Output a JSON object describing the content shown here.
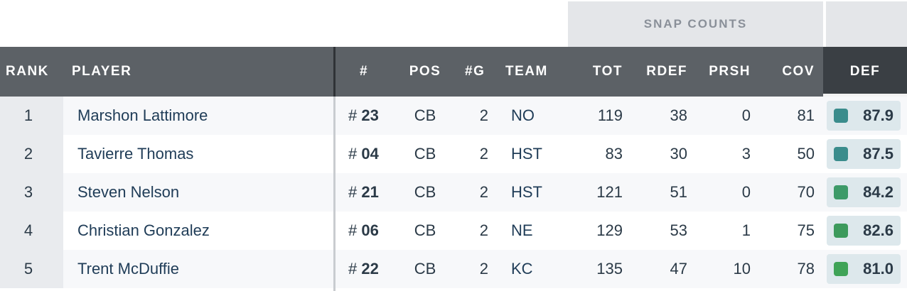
{
  "group_header": {
    "snap_counts": "SNAP COUNTS"
  },
  "columns": {
    "rank": "RANK",
    "player": "PLAYER",
    "number": "#",
    "pos": "POS",
    "games": "#G",
    "team": "TEAM",
    "tot": "TOT",
    "rdef": "RDEF",
    "prsh": "PRSH",
    "cov": "COV",
    "def": "DEF"
  },
  "rows": [
    {
      "rank": "1",
      "player": "Marshon Lattimore",
      "hash": "#",
      "number": "23",
      "pos": "CB",
      "games": "2",
      "team": "NO",
      "tot": "119",
      "rdef": "38",
      "prsh": "0",
      "cov": "81",
      "def": "87.9",
      "grade_color": "#3a8c8c"
    },
    {
      "rank": "2",
      "player": "Tavierre Thomas",
      "hash": "#",
      "number": "04",
      "pos": "CB",
      "games": "2",
      "team": "HST",
      "tot": "83",
      "rdef": "30",
      "prsh": "3",
      "cov": "50",
      "def": "87.5",
      "grade_color": "#3a8c8c"
    },
    {
      "rank": "3",
      "player": "Steven Nelson",
      "hash": "#",
      "number": "21",
      "pos": "CB",
      "games": "2",
      "team": "HST",
      "tot": "121",
      "rdef": "51",
      "prsh": "0",
      "cov": "70",
      "def": "84.2",
      "grade_color": "#3d9a68"
    },
    {
      "rank": "4",
      "player": "Christian Gonzalez",
      "hash": "#",
      "number": "06",
      "pos": "CB",
      "games": "2",
      "team": "NE",
      "tot": "129",
      "rdef": "53",
      "prsh": "1",
      "cov": "75",
      "def": "82.6",
      "grade_color": "#3d9a5c"
    },
    {
      "rank": "5",
      "player": "Trent McDuffie",
      "hash": "#",
      "number": "22",
      "pos": "CB",
      "games": "2",
      "team": "KC",
      "tot": "135",
      "rdef": "47",
      "prsh": "10",
      "cov": "78",
      "def": "81.0",
      "grade_color": "#3fa357"
    }
  ]
}
